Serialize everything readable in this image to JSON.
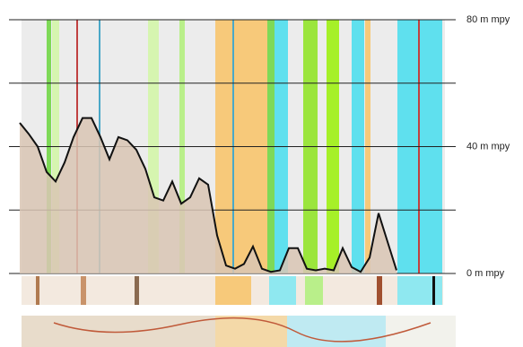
{
  "chart_data": {
    "type": "area",
    "values": [
      47.5,
      44,
      40,
      32,
      29,
      35,
      43,
      49,
      49,
      43,
      36,
      43,
      42,
      39,
      33,
      24,
      23,
      29,
      22,
      24,
      30,
      28,
      12,
      2.5,
      1.5,
      3,
      8.5,
      1.5,
      0.5,
      1,
      8,
      8,
      1.5,
      1,
      1.5,
      1,
      8,
      2,
      0.5,
      5,
      19,
      10,
      1
    ],
    "color": "#111111",
    "fill": "#d9c6b4",
    "ylim": [
      0,
      80
    ],
    "yticks": [
      {
        "value": 0,
        "label": "0 m mpy"
      },
      {
        "value": 20,
        "label": null
      },
      {
        "value": 40,
        "label": "40 m mpy"
      },
      {
        "value": 60,
        "label": null
      },
      {
        "value": 80,
        "label": "80 m mpy"
      }
    ],
    "grid": true
  }
}
